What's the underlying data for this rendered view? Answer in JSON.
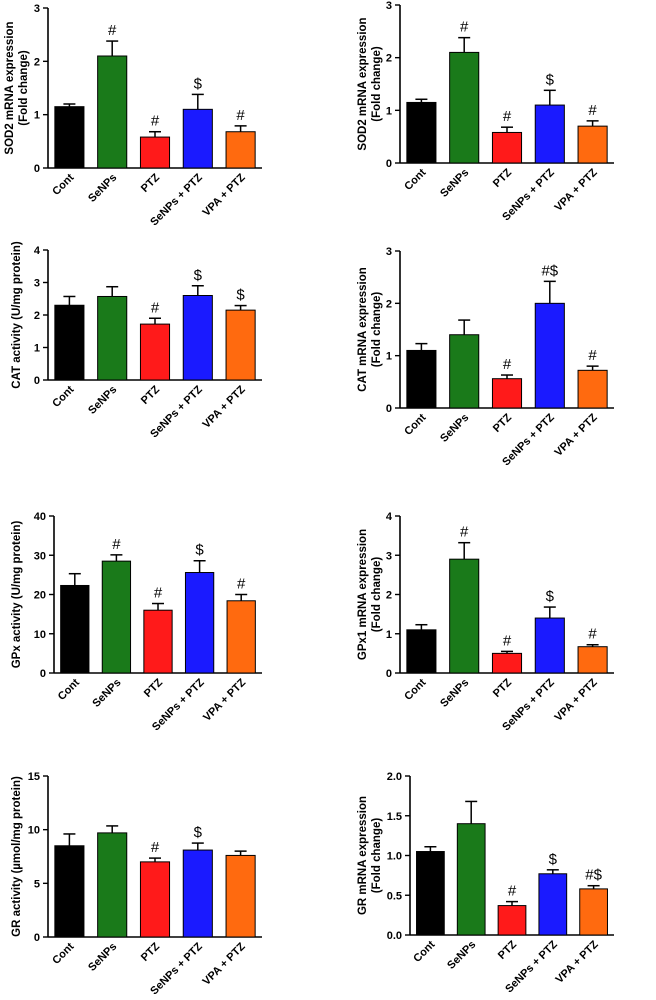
{
  "colors": {
    "Cont": "#000000",
    "SeNPs": "#1a7a1a",
    "PTZ": "#ff1a1a",
    "SeNPs + PTZ": "#1a1aff",
    "VPA + PTZ": "#ff6a0f"
  },
  "chart_data": [
    {
      "type": "bar",
      "categories": [
        "Cont",
        "SeNPs",
        "PTZ",
        "SeNPs + PTZ",
        "VPA + PTZ"
      ],
      "values": [
        1.15,
        2.1,
        0.58,
        1.1,
        0.68
      ],
      "errors": [
        0.05,
        0.28,
        0.1,
        0.28,
        0.11
      ],
      "annotations": [
        "",
        "#",
        "#",
        "$",
        "#"
      ],
      "ylabel": [
        "SOD2 mRNA expression",
        "(Fold change)"
      ],
      "ylim": [
        0,
        3
      ],
      "ticks": [
        0,
        1,
        2,
        3
      ],
      "tick_labels": [
        "0",
        "1",
        "2",
        "3"
      ]
    },
    {
      "type": "bar",
      "categories": [
        "Cont",
        "SeNPs",
        "PTZ",
        "SeNPs + PTZ",
        "VPA + PTZ"
      ],
      "values": [
        1.15,
        2.1,
        0.58,
        1.1,
        0.7
      ],
      "errors": [
        0.06,
        0.28,
        0.1,
        0.28,
        0.1
      ],
      "annotations": [
        "",
        "#",
        "#",
        "$",
        "#"
      ],
      "ylabel": [
        "SOD2 mRNA expression",
        "(Fold change)"
      ],
      "ylim": [
        0,
        3
      ],
      "ticks": [
        0,
        1,
        2,
        3
      ],
      "tick_labels": [
        "0",
        "1",
        "2",
        "3"
      ]
    },
    {
      "type": "bar",
      "categories": [
        "Cont",
        "SeNPs",
        "PTZ",
        "SeNPs + PTZ",
        "VPA + PTZ"
      ],
      "values": [
        2.3,
        2.57,
        1.72,
        2.6,
        2.15
      ],
      "errors": [
        0.27,
        0.3,
        0.18,
        0.3,
        0.14
      ],
      "annotations": [
        "",
        "",
        "#",
        "$",
        "$"
      ],
      "ylabel": [
        "CAT activity (U/mg protein)"
      ],
      "ylim": [
        0,
        4
      ],
      "ticks": [
        0,
        1,
        2,
        3,
        4
      ],
      "tick_labels": [
        "0",
        "1",
        "2",
        "3",
        "4"
      ]
    },
    {
      "type": "bar",
      "categories": [
        "Cont",
        "SeNPs",
        "PTZ",
        "SeNPs + PTZ",
        "VPA + PTZ"
      ],
      "values": [
        1.1,
        1.4,
        0.56,
        2.0,
        0.72
      ],
      "errors": [
        0.13,
        0.28,
        0.07,
        0.42,
        0.08
      ],
      "annotations": [
        "",
        "",
        "#",
        "#$",
        "#"
      ],
      "ylabel": [
        "CAT mRNA expression",
        "(Fold change)"
      ],
      "ylim": [
        0,
        3
      ],
      "ticks": [
        0,
        1,
        2,
        3
      ],
      "tick_labels": [
        "0",
        "1",
        "2",
        "3"
      ]
    },
    {
      "type": "bar",
      "categories": [
        "Cont",
        "SeNPs",
        "PTZ",
        "SeNPs + PTZ",
        "VPA + PTZ"
      ],
      "values": [
        22.3,
        28.5,
        16.0,
        25.6,
        18.4
      ],
      "errors": [
        3.0,
        1.6,
        1.7,
        3.0,
        1.6
      ],
      "annotations": [
        "",
        "#",
        "#",
        "$",
        "#"
      ],
      "ylabel": [
        "GPx activity (U/mg protein)"
      ],
      "ylim": [
        0,
        40
      ],
      "ticks": [
        0,
        10,
        20,
        30,
        40
      ],
      "tick_labels": [
        "0",
        "10",
        "20",
        "30",
        "40"
      ]
    },
    {
      "type": "bar",
      "categories": [
        "Cont",
        "SeNPs",
        "PTZ",
        "SeNPs + PTZ",
        "VPA + PTZ"
      ],
      "values": [
        1.1,
        2.9,
        0.5,
        1.4,
        0.67
      ],
      "errors": [
        0.13,
        0.42,
        0.05,
        0.28,
        0.05
      ],
      "annotations": [
        "",
        "#",
        "#",
        "$",
        "#"
      ],
      "ylabel": [
        "GPx1 mRNA expression",
        "(Fold change)"
      ],
      "ylim": [
        0,
        4
      ],
      "ticks": [
        0,
        1,
        2,
        3,
        4
      ],
      "tick_labels": [
        "0",
        "1",
        "2",
        "3",
        "4"
      ]
    },
    {
      "type": "bar",
      "categories": [
        "Cont",
        "SeNPs",
        "PTZ",
        "SeNPs + PTZ",
        "VPA + PTZ"
      ],
      "values": [
        8.5,
        9.7,
        7.0,
        8.1,
        7.6
      ],
      "errors": [
        1.1,
        0.65,
        0.35,
        0.65,
        0.4
      ],
      "annotations": [
        "",
        "",
        "#",
        "$",
        ""
      ],
      "ylabel": [
        "GR activity (µmol/mg protein)"
      ],
      "ylim": [
        0,
        15
      ],
      "ticks": [
        0,
        5,
        10,
        15
      ],
      "tick_labels": [
        "0",
        "5",
        "10",
        "15"
      ]
    },
    {
      "type": "bar",
      "categories": [
        "Cont",
        "SeNPs",
        "PTZ",
        "SeNPs + PTZ",
        "VPA + PTZ"
      ],
      "values": [
        1.05,
        1.4,
        0.37,
        0.77,
        0.58
      ],
      "errors": [
        0.06,
        0.28,
        0.05,
        0.05,
        0.04
      ],
      "annotations": [
        "",
        "",
        "#",
        "$",
        "#$"
      ],
      "ylabel": [
        "GR mRNA expression",
        "(Fold change)"
      ],
      "ylim": [
        0,
        2
      ],
      "ticks": [
        0,
        0.5,
        1.0,
        1.5,
        2.0
      ],
      "tick_labels": [
        "0.0",
        "0.5",
        "1.0",
        "1.5",
        "2.0"
      ]
    }
  ]
}
